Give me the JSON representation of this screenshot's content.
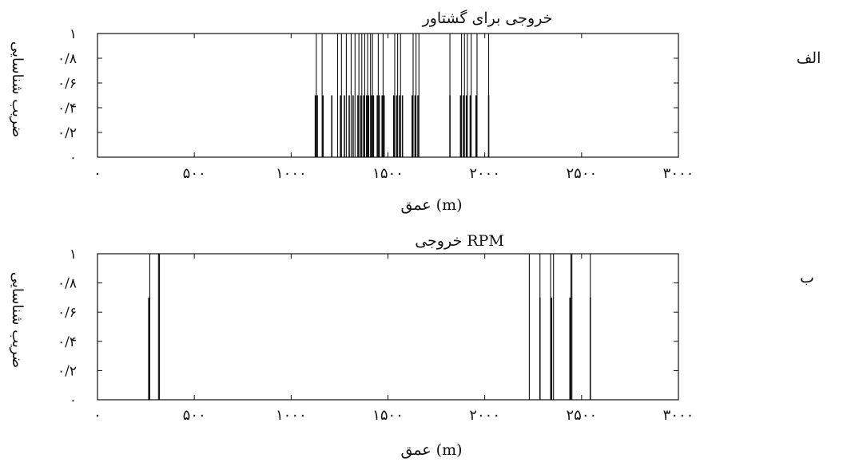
{
  "chart_data": [
    {
      "type": "bar",
      "panel_label": "الف",
      "title": "خروجی برای گشتاور",
      "xlabel": "عمق (m)",
      "ylabel": "ضریب شناسایی",
      "xlim": [
        0,
        3000
      ],
      "ylim": [
        0,
        1
      ],
      "x_tick_values": [
        0,
        500,
        1000,
        1500,
        2000,
        2500,
        3000
      ],
      "x_tick_labels": [
        "۰",
        "۵۰۰",
        "۱۰۰۰",
        "۱۵۰۰",
        "۲۰۰۰",
        "۲۵۰۰",
        "۳۰۰۰"
      ],
      "y_tick_values": [
        0,
        0.2,
        0.4,
        0.6,
        0.8,
        1
      ],
      "y_tick_labels": [
        "۰",
        "۰/۲",
        "۰/۴",
        "۰/۶",
        "۰/۸",
        "۱"
      ],
      "grid": false,
      "series": [
        {
          "x": [
            1130,
            1160,
            1240,
            1260,
            1285,
            1310,
            1330,
            1350,
            1365,
            1380,
            1395,
            1410,
            1420,
            1450,
            1475,
            1535,
            1550,
            1565,
            1630,
            1645,
            1660,
            1820,
            1880,
            1895,
            1910,
            1930,
            1960,
            2020
          ],
          "y": [
            1,
            1,
            1,
            1,
            1,
            1,
            1,
            1,
            1,
            1,
            1,
            1,
            1,
            1,
            1,
            1,
            1,
            1,
            1,
            1,
            1,
            1,
            1,
            1,
            1,
            1,
            1,
            1
          ]
        },
        {
          "x": [
            1125,
            1135,
            1165,
            1210,
            1255,
            1275,
            1300,
            1320,
            1345,
            1360,
            1375,
            1390,
            1400,
            1415,
            1425,
            1445,
            1455,
            1470,
            1480,
            1530,
            1545,
            1560,
            1575,
            1625,
            1640,
            1655,
            1820,
            1875,
            1890,
            1905,
            1925,
            1955,
            2020
          ],
          "y": [
            0.5,
            0.5,
            0.5,
            0.5,
            0.5,
            0.5,
            0.5,
            0.5,
            0.5,
            0.5,
            0.5,
            0.5,
            0.5,
            0.5,
            0.5,
            0.5,
            0.5,
            0.5,
            0.5,
            0.5,
            0.5,
            0.5,
            0.5,
            0.5,
            0.5,
            0.5,
            0.5,
            0.5,
            0.5,
            0.5,
            0.5,
            0.5,
            0.5
          ]
        }
      ]
    },
    {
      "type": "bar",
      "panel_label": "ب",
      "title": "خروجی RPM",
      "xlabel": "عمق (m)",
      "ylabel": "ضریب شناسایی",
      "xlim": [
        0,
        3000
      ],
      "ylim": [
        0,
        1
      ],
      "x_tick_values": [
        0,
        500,
        1000,
        1500,
        2000,
        2500,
        3000
      ],
      "x_tick_labels": [
        "۰",
        "۵۰۰",
        "۱۰۰۰",
        "۱۵۰۰",
        "۲۰۰۰",
        "۲۵۰۰",
        "۳۰۰۰"
      ],
      "y_tick_values": [
        0,
        0.2,
        0.4,
        0.6,
        0.8,
        1
      ],
      "y_tick_labels": [
        "۰",
        "۰/۲",
        "۰/۴",
        "۰/۶",
        "۰/۸",
        "۱"
      ],
      "grid": false,
      "series": [
        {
          "x": [
            270,
            315,
            320,
            2230,
            2285,
            2340,
            2355,
            2445,
            2450,
            2545
          ],
          "y": [
            1,
            1,
            1,
            1,
            1,
            1,
            1,
            1,
            1,
            1
          ]
        },
        {
          "x": [
            265,
            2285,
            2345,
            2440,
            2545
          ],
          "y": [
            0.7,
            0.7,
            0.7,
            0.7,
            0.7
          ]
        }
      ]
    }
  ]
}
